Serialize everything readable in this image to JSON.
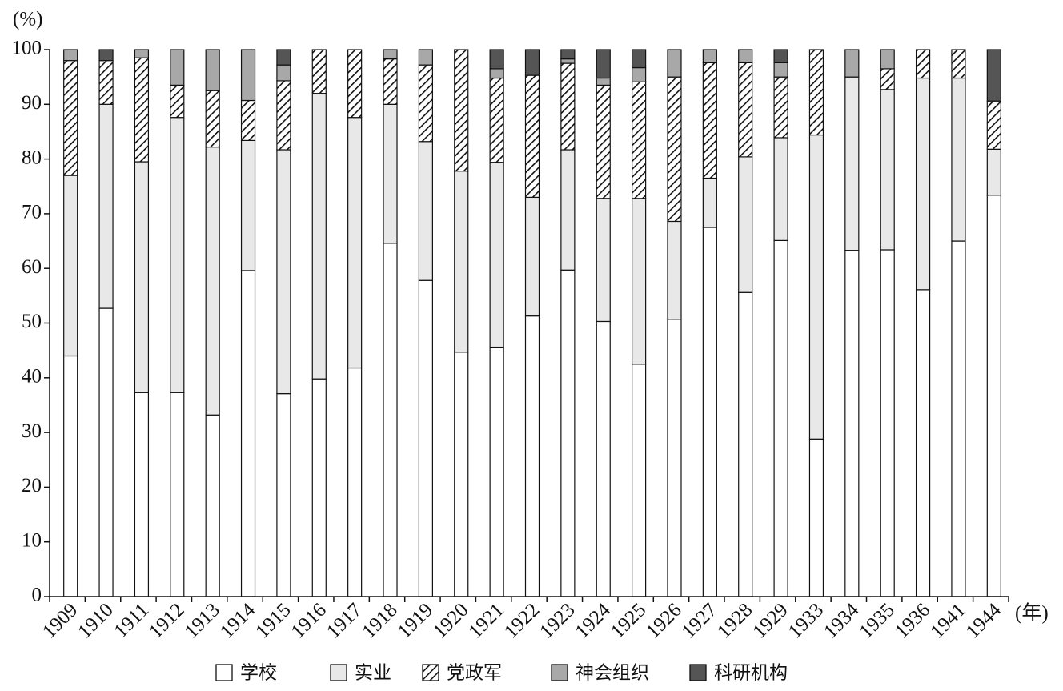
{
  "chart_data": {
    "type": "stacked-bar",
    "y_unit_label": "(%)",
    "x_unit_label": "(年)",
    "categories": [
      "1909",
      "1910",
      "1911",
      "1912",
      "1913",
      "1914",
      "1915",
      "1916",
      "1917",
      "1918",
      "1919",
      "1920",
      "1921",
      "1922",
      "1923",
      "1924",
      "1925",
      "1926",
      "1927",
      "1928",
      "1929",
      "1933",
      "1934",
      "1935",
      "1936",
      "1941",
      "1944"
    ],
    "ylim": [
      0,
      100
    ],
    "yticks": [
      0,
      10,
      20,
      30,
      40,
      50,
      60,
      70,
      80,
      90,
      100
    ],
    "series": [
      {
        "name": "学校",
        "color": "#ffffff",
        "values": [
          44,
          52.7,
          37.3,
          37.3,
          33.2,
          59.6,
          37.1,
          39.8,
          41.8,
          64.6,
          57.8,
          44.7,
          45.6,
          51.3,
          59.7,
          50.3,
          42.5,
          50.7,
          67.5,
          55.6,
          65.1,
          28.8,
          63.3,
          63.4,
          56.1,
          65,
          73.4
        ]
      },
      {
        "name": "实业",
        "color": "#e8e8e8",
        "values": [
          33,
          37.3,
          42.2,
          50.3,
          49,
          23.8,
          44.6,
          52.2,
          45.8,
          25.4,
          25.4,
          33.1,
          33.8,
          21.7,
          22,
          22.5,
          30.3,
          17.9,
          9,
          24.8,
          18.8,
          55.6,
          31.7,
          29.3,
          38.7,
          29.8,
          8.4
        ]
      },
      {
        "name": "党政军",
        "color": "#ffffff",
        "pattern": "hatch",
        "values": [
          21,
          8,
          19,
          5.9,
          10.3,
          7.3,
          12.6,
          8,
          12.4,
          8.3,
          14,
          22.2,
          15.4,
          22.3,
          15.8,
          20.7,
          21.3,
          26.4,
          21.1,
          17.2,
          11.1,
          15.6,
          0,
          3.8,
          5.2,
          5.2,
          8.8
        ]
      },
      {
        "name": "神会组织",
        "color": "#a8a8a8",
        "values": [
          2,
          0,
          1.5,
          6.5,
          7.5,
          9.3,
          2.9,
          0,
          0,
          1.7,
          2.8,
          0,
          1.7,
          0,
          0.8,
          1.3,
          2.6,
          5,
          2.4,
          2.4,
          2.6,
          0,
          5,
          3.5,
          0,
          0,
          0
        ]
      },
      {
        "name": "科研机构",
        "color": "#555555",
        "values": [
          0,
          2,
          0,
          0,
          0,
          0,
          2.8,
          0,
          0,
          0,
          0,
          0,
          3.5,
          4.7,
          1.7,
          5.2,
          3.3,
          0,
          0,
          0,
          2.4,
          0,
          0,
          0,
          0,
          0,
          9.4
        ]
      }
    ]
  }
}
